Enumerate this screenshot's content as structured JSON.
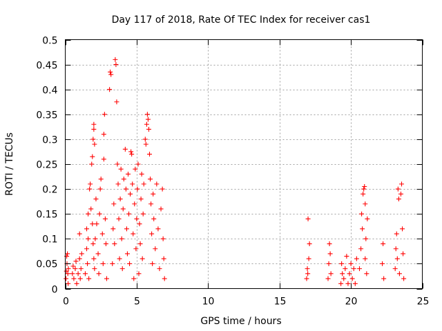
{
  "chart_data": {
    "type": "scatter",
    "title": "Day 117 of 2018, Rate Of TEC Index for receiver cas1",
    "xlabel": "GPS time / hours",
    "ylabel": "ROTI / TECUs",
    "xlim": [
      0,
      25
    ],
    "ylim": [
      0,
      0.5
    ],
    "xticks": [
      0,
      5,
      10,
      15,
      20,
      25
    ],
    "xtick_labels": [
      "0",
      "5",
      "10",
      "15",
      "20",
      "25"
    ],
    "yticks": [
      0,
      0.05,
      0.1,
      0.15,
      0.2,
      0.25,
      0.3,
      0.35,
      0.4,
      0.45,
      0.5
    ],
    "ytick_labels": [
      "0",
      "0.05",
      "0.1",
      "0.15",
      "0.2",
      "0.25",
      "0.3",
      "0.35",
      "0.4",
      "0.45",
      "0.5"
    ],
    "grid": true,
    "marker": "plus",
    "color": "#ff0000",
    "series": [
      {
        "values": [
          [
            0.05,
            0.02
          ],
          [
            0.08,
            0.035
          ],
          [
            0.12,
            0.05
          ],
          [
            0.15,
            0.07
          ],
          [
            0.18,
            0.03
          ],
          [
            0.2,
            0.01
          ],
          [
            0.1,
            0.065
          ],
          [
            0.22,
            0.04
          ],
          [
            0.5,
            0.03
          ],
          [
            0.55,
            0.045
          ],
          [
            0.6,
            0.02
          ],
          [
            0.7,
            0.04
          ],
          [
            0.75,
            0.055
          ],
          [
            0.8,
            0.01
          ],
          [
            0.9,
            0.03
          ],
          [
            1.0,
            0.06
          ],
          [
            1.0,
            0.11
          ],
          [
            1.05,
            0.02
          ],
          [
            1.1,
            0.04
          ],
          [
            1.15,
            0.07
          ],
          [
            1.4,
            0.03
          ],
          [
            1.5,
            0.08
          ],
          [
            1.5,
            0.12
          ],
          [
            1.55,
            0.05
          ],
          [
            1.6,
            0.1
          ],
          [
            1.6,
            0.15
          ],
          [
            1.65,
            0.02
          ],
          [
            1.7,
            0.2
          ],
          [
            1.75,
            0.21
          ],
          [
            1.8,
            0.16
          ],
          [
            1.85,
            0.25
          ],
          [
            1.9,
            0.265
          ],
          [
            1.95,
            0.3
          ],
          [
            2.0,
            0.33
          ],
          [
            2.0,
            0.32
          ],
          [
            2.05,
            0.29
          ],
          [
            1.9,
            0.13
          ],
          [
            1.95,
            0.09
          ],
          [
            2.0,
            0.06
          ],
          [
            2.05,
            0.04
          ],
          [
            2.1,
            0.1
          ],
          [
            2.15,
            0.18
          ],
          [
            2.2,
            0.13
          ],
          [
            2.3,
            0.07
          ],
          [
            2.35,
            0.03
          ],
          [
            2.4,
            0.15
          ],
          [
            2.45,
            0.2
          ],
          [
            2.5,
            0.22
          ],
          [
            2.6,
            0.11
          ],
          [
            2.65,
            0.05
          ],
          [
            2.7,
            0.31
          ],
          [
            2.75,
            0.35
          ],
          [
            2.7,
            0.26
          ],
          [
            2.8,
            0.14
          ],
          [
            2.85,
            0.09
          ],
          [
            2.9,
            0.02
          ],
          [
            3.1,
            0.4
          ],
          [
            3.15,
            0.435
          ],
          [
            3.2,
            0.43
          ],
          [
            3.3,
            0.05
          ],
          [
            3.35,
            0.12
          ],
          [
            3.4,
            0.17
          ],
          [
            3.45,
            0.09
          ],
          [
            3.5,
            0.46
          ],
          [
            3.55,
            0.45
          ],
          [
            3.6,
            0.375
          ],
          [
            3.65,
            0.25
          ],
          [
            3.7,
            0.21
          ],
          [
            3.75,
            0.14
          ],
          [
            3.8,
            0.06
          ],
          [
            3.85,
            0.18
          ],
          [
            3.9,
            0.24
          ],
          [
            3.95,
            0.1
          ],
          [
            4.0,
            0.04
          ],
          [
            4.05,
            0.16
          ],
          [
            4.1,
            0.22
          ],
          [
            4.2,
            0.28
          ],
          [
            4.25,
            0.2
          ],
          [
            4.3,
            0.12
          ],
          [
            4.35,
            0.07
          ],
          [
            4.4,
            0.23
          ],
          [
            4.45,
            0.15
          ],
          [
            4.5,
            0.05
          ],
          [
            4.55,
            0.19
          ],
          [
            4.6,
            0.275
          ],
          [
            4.65,
            0.27
          ],
          [
            4.7,
            0.21
          ],
          [
            4.75,
            0.11
          ],
          [
            4.8,
            0.02
          ],
          [
            4.85,
            0.17
          ],
          [
            4.9,
            0.24
          ],
          [
            4.95,
            0.08
          ],
          [
            5.0,
            0.14
          ],
          [
            5.05,
            0.2
          ],
          [
            5.1,
            0.25
          ],
          [
            5.15,
            0.03
          ],
          [
            5.2,
            0.13
          ],
          [
            5.25,
            0.09
          ],
          [
            5.3,
            0.18
          ],
          [
            5.35,
            0.23
          ],
          [
            5.4,
            0.06
          ],
          [
            5.45,
            0.15
          ],
          [
            5.5,
            0.21
          ],
          [
            5.6,
            0.3
          ],
          [
            5.65,
            0.29
          ],
          [
            5.7,
            0.33
          ],
          [
            5.75,
            0.35
          ],
          [
            5.8,
            0.34
          ],
          [
            5.85,
            0.32
          ],
          [
            5.9,
            0.27
          ],
          [
            5.95,
            0.22
          ],
          [
            6.0,
            0.17
          ],
          [
            6.05,
            0.11
          ],
          [
            6.1,
            0.05
          ],
          [
            6.15,
            0.19
          ],
          [
            6.2,
            0.14
          ],
          [
            6.3,
            0.08
          ],
          [
            6.4,
            0.21
          ],
          [
            6.5,
            0.12
          ],
          [
            6.6,
            0.04
          ],
          [
            6.7,
            0.16
          ],
          [
            6.8,
            0.2
          ],
          [
            6.85,
            0.1
          ],
          [
            6.9,
            0.06
          ],
          [
            6.95,
            0.02
          ],
          [
            16.9,
            0.02
          ],
          [
            16.95,
            0.04
          ],
          [
            17.0,
            0.14
          ],
          [
            17.05,
            0.06
          ],
          [
            17.1,
            0.09
          ],
          [
            16.98,
            0.03
          ],
          [
            18.4,
            0.02
          ],
          [
            18.45,
            0.05
          ],
          [
            18.5,
            0.09
          ],
          [
            18.55,
            0.07
          ],
          [
            18.6,
            0.03
          ],
          [
            19.3,
            0.01
          ],
          [
            19.35,
            0.05
          ],
          [
            19.4,
            0.03
          ],
          [
            19.5,
            0.02
          ],
          [
            19.6,
            0.04
          ],
          [
            19.7,
            0.065
          ],
          [
            19.8,
            0.01
          ],
          [
            19.9,
            0.03
          ],
          [
            20.0,
            0.05
          ],
          [
            20.1,
            0.02
          ],
          [
            20.2,
            0.04
          ],
          [
            20.3,
            0.01
          ],
          [
            20.4,
            0.06
          ],
          [
            20.6,
            0.04
          ],
          [
            20.7,
            0.08
          ],
          [
            20.75,
            0.15
          ],
          [
            20.8,
            0.12
          ],
          [
            20.85,
            0.19
          ],
          [
            20.9,
            0.2
          ],
          [
            20.95,
            0.205
          ],
          [
            21.0,
            0.17
          ],
          [
            21.0,
            0.06
          ],
          [
            21.05,
            0.1
          ],
          [
            21.1,
            0.03
          ],
          [
            21.15,
            0.14
          ],
          [
            22.2,
            0.05
          ],
          [
            22.25,
            0.09
          ],
          [
            22.3,
            0.02
          ],
          [
            23.1,
            0.04
          ],
          [
            23.15,
            0.08
          ],
          [
            23.2,
            0.11
          ],
          [
            23.25,
            0.06
          ],
          [
            23.3,
            0.2
          ],
          [
            23.35,
            0.18
          ],
          [
            23.4,
            0.03
          ],
          [
            23.5,
            0.19
          ],
          [
            23.55,
            0.21
          ],
          [
            23.6,
            0.12
          ],
          [
            23.65,
            0.07
          ],
          [
            23.7,
            0.02
          ]
        ]
      }
    ]
  }
}
